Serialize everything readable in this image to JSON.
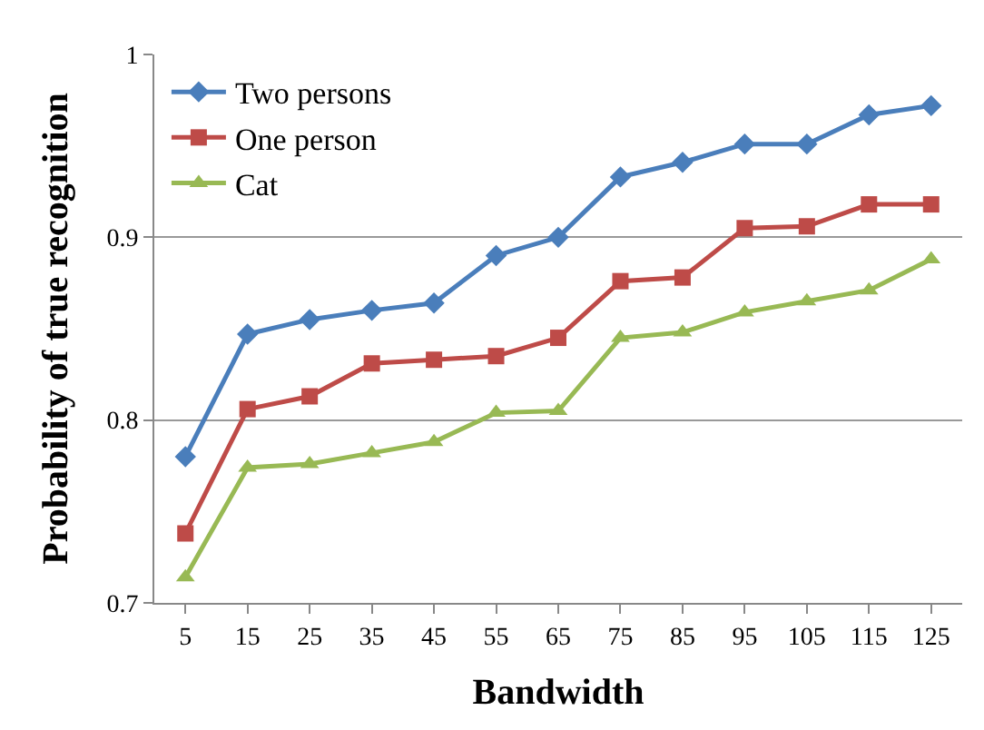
{
  "chart_data": {
    "type": "line",
    "xlabel": "Bandwidth",
    "ylabel": "Probability of true recognition",
    "categories": [
      "5",
      "15",
      "25",
      "35",
      "45",
      "55",
      "65",
      "75",
      "85",
      "95",
      "105",
      "115",
      "125"
    ],
    "series": [
      {
        "name": "Two persons",
        "color": "#4a7ebb",
        "marker": "diamond",
        "values": [
          0.78,
          0.847,
          0.855,
          0.86,
          0.864,
          0.89,
          0.9,
          0.933,
          0.941,
          0.951,
          0.951,
          0.967,
          0.972
        ]
      },
      {
        "name": "One person",
        "color": "#be4b48",
        "marker": "square",
        "values": [
          0.738,
          0.806,
          0.813,
          0.831,
          0.833,
          0.835,
          0.845,
          0.876,
          0.878,
          0.905,
          0.906,
          0.918,
          0.918
        ]
      },
      {
        "name": "Cat",
        "color": "#98b954",
        "marker": "triangle",
        "values": [
          0.714,
          0.774,
          0.776,
          0.782,
          0.788,
          0.804,
          0.805,
          0.845,
          0.848,
          0.859,
          0.865,
          0.871,
          0.888
        ]
      }
    ],
    "ylim": [
      0.7,
      1
    ],
    "yticks": [
      0.7,
      0.8,
      0.9,
      1
    ],
    "grid": "y",
    "legend": "top left"
  }
}
